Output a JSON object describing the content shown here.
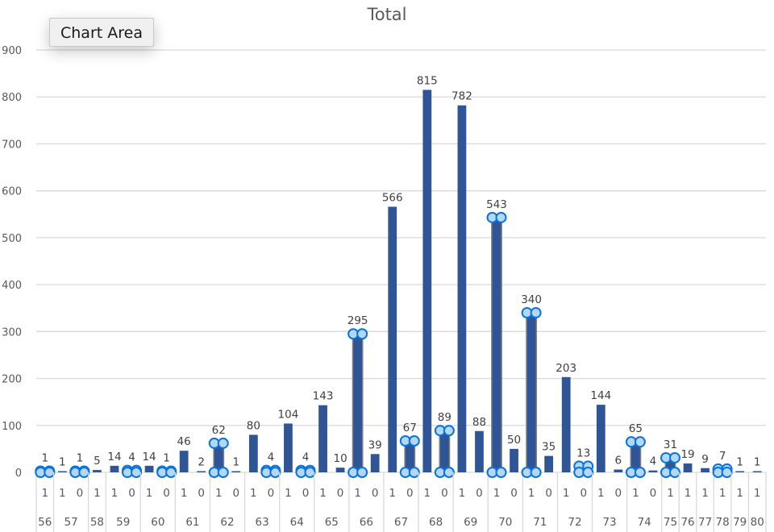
{
  "chart_title": "Total",
  "tooltip": {
    "label": "Chart Area"
  },
  "colors": {
    "bar": "#2f5597",
    "grid": "#d9d9d9",
    "axis_text": "#595959",
    "handle_fill": "#b3d7f5",
    "handle_stroke": "#0a73d9"
  },
  "chart_data": {
    "type": "bar",
    "title": "Total",
    "xlabel": "",
    "ylabel": "",
    "ylim": [
      0,
      900
    ],
    "yticks": [
      0,
      100,
      200,
      300,
      400,
      500,
      600,
      700,
      800,
      900
    ],
    "grid": true,
    "legend": "none",
    "x_axis_multilevel": true,
    "groups": [
      {
        "label": "56",
        "bars": [
          {
            "sub": "1",
            "value": 1,
            "selected": true
          }
        ]
      },
      {
        "label": "57",
        "bars": [
          {
            "sub": "1",
            "value": 1,
            "selected": false
          },
          {
            "sub": "0",
            "value": 1,
            "selected": true
          }
        ]
      },
      {
        "label": "58",
        "bars": [
          {
            "sub": "1",
            "value": 5,
            "selected": false
          }
        ]
      },
      {
        "label": "59",
        "bars": [
          {
            "sub": "1",
            "value": 14,
            "selected": false
          },
          {
            "sub": "0",
            "value": 4,
            "selected": true
          }
        ]
      },
      {
        "label": "60",
        "bars": [
          {
            "sub": "1",
            "value": 14,
            "selected": false
          },
          {
            "sub": "0",
            "value": 1,
            "selected": true
          }
        ]
      },
      {
        "label": "61",
        "bars": [
          {
            "sub": "1",
            "value": 46,
            "selected": false
          },
          {
            "sub": "0",
            "value": 2,
            "selected": false
          }
        ]
      },
      {
        "label": "62",
        "bars": [
          {
            "sub": "1",
            "value": 62,
            "selected": true
          },
          {
            "sub": "0",
            "value": 1,
            "selected": false
          }
        ]
      },
      {
        "label": "63",
        "bars": [
          {
            "sub": "1",
            "value": 80,
            "selected": false
          },
          {
            "sub": "0",
            "value": 4,
            "selected": true
          }
        ]
      },
      {
        "label": "64",
        "bars": [
          {
            "sub": "1",
            "value": 104,
            "selected": false
          },
          {
            "sub": "0",
            "value": 4,
            "selected": true
          }
        ]
      },
      {
        "label": "65",
        "bars": [
          {
            "sub": "1",
            "value": 143,
            "selected": false
          },
          {
            "sub": "0",
            "value": 10,
            "selected": false
          }
        ]
      },
      {
        "label": "66",
        "bars": [
          {
            "sub": "1",
            "value": 295,
            "selected": true
          },
          {
            "sub": "0",
            "value": 39,
            "selected": false
          }
        ]
      },
      {
        "label": "67",
        "bars": [
          {
            "sub": "1",
            "value": 566,
            "selected": false
          },
          {
            "sub": "0",
            "value": 67,
            "selected": true
          }
        ]
      },
      {
        "label": "68",
        "bars": [
          {
            "sub": "1",
            "value": 815,
            "selected": false
          },
          {
            "sub": "0",
            "value": 89,
            "selected": true
          }
        ]
      },
      {
        "label": "69",
        "bars": [
          {
            "sub": "1",
            "value": 782,
            "selected": false
          },
          {
            "sub": "0",
            "value": 88,
            "selected": false
          }
        ]
      },
      {
        "label": "70",
        "bars": [
          {
            "sub": "1",
            "value": 543,
            "selected": true
          },
          {
            "sub": "0",
            "value": 50,
            "selected": false
          }
        ]
      },
      {
        "label": "71",
        "bars": [
          {
            "sub": "1",
            "value": 340,
            "selected": true
          },
          {
            "sub": "0",
            "value": 35,
            "selected": false
          }
        ]
      },
      {
        "label": "72",
        "bars": [
          {
            "sub": "1",
            "value": 203,
            "selected": false
          },
          {
            "sub": "0",
            "value": 13,
            "selected": true
          }
        ]
      },
      {
        "label": "73",
        "bars": [
          {
            "sub": "1",
            "value": 144,
            "selected": false
          },
          {
            "sub": "0",
            "value": 6,
            "selected": false
          }
        ]
      },
      {
        "label": "74",
        "bars": [
          {
            "sub": "1",
            "value": 65,
            "selected": true
          },
          {
            "sub": "0",
            "value": 4,
            "selected": false
          }
        ]
      },
      {
        "label": "75",
        "bars": [
          {
            "sub": "1",
            "value": 31,
            "selected": true
          }
        ]
      },
      {
        "label": "76",
        "bars": [
          {
            "sub": "1",
            "value": 19,
            "selected": false
          }
        ]
      },
      {
        "label": "77",
        "bars": [
          {
            "sub": "1",
            "value": 9,
            "selected": false
          }
        ]
      },
      {
        "label": "78",
        "bars": [
          {
            "sub": "1",
            "value": 7,
            "selected": true
          }
        ]
      },
      {
        "label": "79",
        "bars": [
          {
            "sub": "1",
            "value": 1,
            "selected": false
          }
        ]
      },
      {
        "label": "80",
        "bars": [
          {
            "sub": "1",
            "value": 1,
            "selected": false
          }
        ]
      }
    ]
  }
}
